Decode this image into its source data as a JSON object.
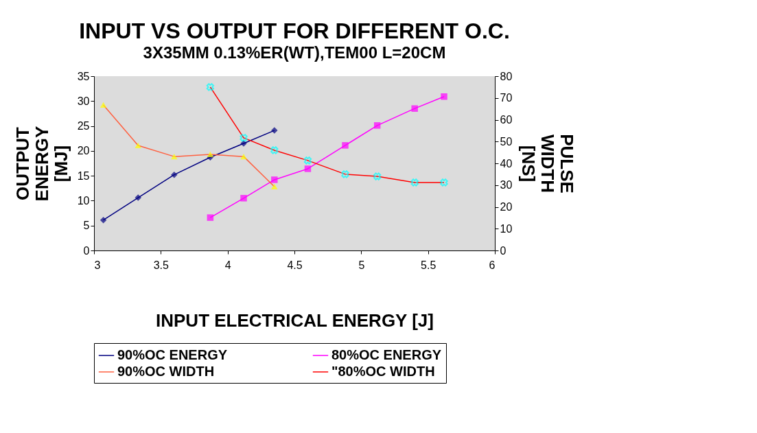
{
  "chart_data": {
    "type": "line",
    "title": "INPUT VS OUTPUT FOR DIFFERENT O.C.",
    "subtitle": "3X35MM 0.13%ER(WT),TEM00 L=20CM",
    "xlabel": "INPUT ELECTRICAL ENERGY [J]",
    "ylabel": "OUTPUT ENERGY [MJ]",
    "y2label": "PULSE WIDTH [NS]",
    "xlim": [
      3,
      6
    ],
    "xticks": [
      3,
      3.5,
      4,
      4.5,
      5,
      5.5,
      6
    ],
    "ylim": [
      0,
      35
    ],
    "yticks": [
      0,
      5,
      10,
      15,
      20,
      25,
      30,
      35
    ],
    "y2lim": [
      0,
      80
    ],
    "y2ticks": [
      0,
      10,
      20,
      30,
      40,
      50,
      60,
      70,
      80
    ],
    "grid": false,
    "legend": "bottom",
    "series": [
      {
        "name": "90%OC ENERGY",
        "color": "#000080",
        "marker": "diamond",
        "x": [
          3.07,
          3.33,
          3.6,
          3.87,
          4.12,
          4.35
        ],
        "values": [
          6.1,
          10.6,
          15.2,
          18.7,
          21.5,
          24.1
        ]
      },
      {
        "name": "80%OC ENERGY",
        "color": "#ff00ff",
        "marker": "square",
        "x": [
          3.87,
          4.12,
          4.35,
          4.6,
          4.88,
          5.12,
          5.4,
          5.62
        ],
        "values": [
          6.6,
          10.5,
          14.2,
          16.4,
          21.1,
          25.1,
          28.5,
          30.9
        ]
      },
      {
        "name": "90%OC WIDTH",
        "color": "#ff6040",
        "colors": [
          "#ffff00",
          "#ffff00",
          "#ffff00",
          "#ffff00",
          "#ffff00",
          "#ffff00"
        ],
        "marker": "triangle",
        "axis": "y2",
        "x": [
          3.07,
          3.33,
          3.6,
          3.87,
          4.12,
          4.35
        ],
        "values": [
          66.8,
          48.2,
          43.1,
          44.1,
          43.1,
          29.3
        ]
      },
      {
        "name": "\"80%OC WIDTH",
        "color": "#ff0000",
        "colors": [
          "#00ffff",
          "#00ffff",
          "#00ffff",
          "#00ffff",
          "#00ffff",
          "#00ffff",
          "#00ffff",
          "#00ffff"
        ],
        "marker": "cross",
        "axis": "y2",
        "x": [
          3.87,
          4.12,
          4.35,
          4.6,
          4.88,
          5.12,
          5.4,
          5.62
        ],
        "values": [
          75.0,
          51.7,
          46.0,
          41.3,
          35.0,
          34.0,
          31.2,
          31.2
        ]
      }
    ]
  }
}
